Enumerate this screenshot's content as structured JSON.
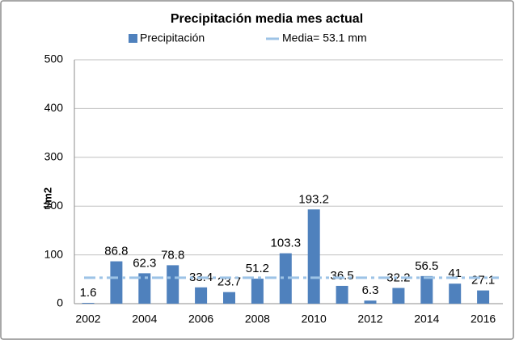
{
  "chart_data": {
    "type": "bar",
    "title": "Precipitación media mes actual",
    "y_label": "l/m2",
    "categories": [
      "2002",
      null,
      "2004",
      null,
      "2006",
      null,
      "2008",
      null,
      "2010",
      null,
      "2012",
      null,
      "2014",
      null,
      "2016"
    ],
    "series": [
      {
        "name": "Precipitación",
        "color": "#4f81bd",
        "values": [
          1.6,
          86.8,
          62.3,
          78.8,
          33.4,
          23.7,
          51.2,
          103.3,
          193.2,
          36.5,
          6.3,
          32.2,
          56.5,
          41,
          27.1
        ]
      }
    ],
    "mean": {
      "name": "Media= 53.1 mm",
      "value": 53.1,
      "color": "#9dc3e6"
    },
    "ylim": [
      0,
      500
    ],
    "yticks": [
      0,
      100,
      200,
      300,
      400,
      500
    ],
    "grid": true
  }
}
